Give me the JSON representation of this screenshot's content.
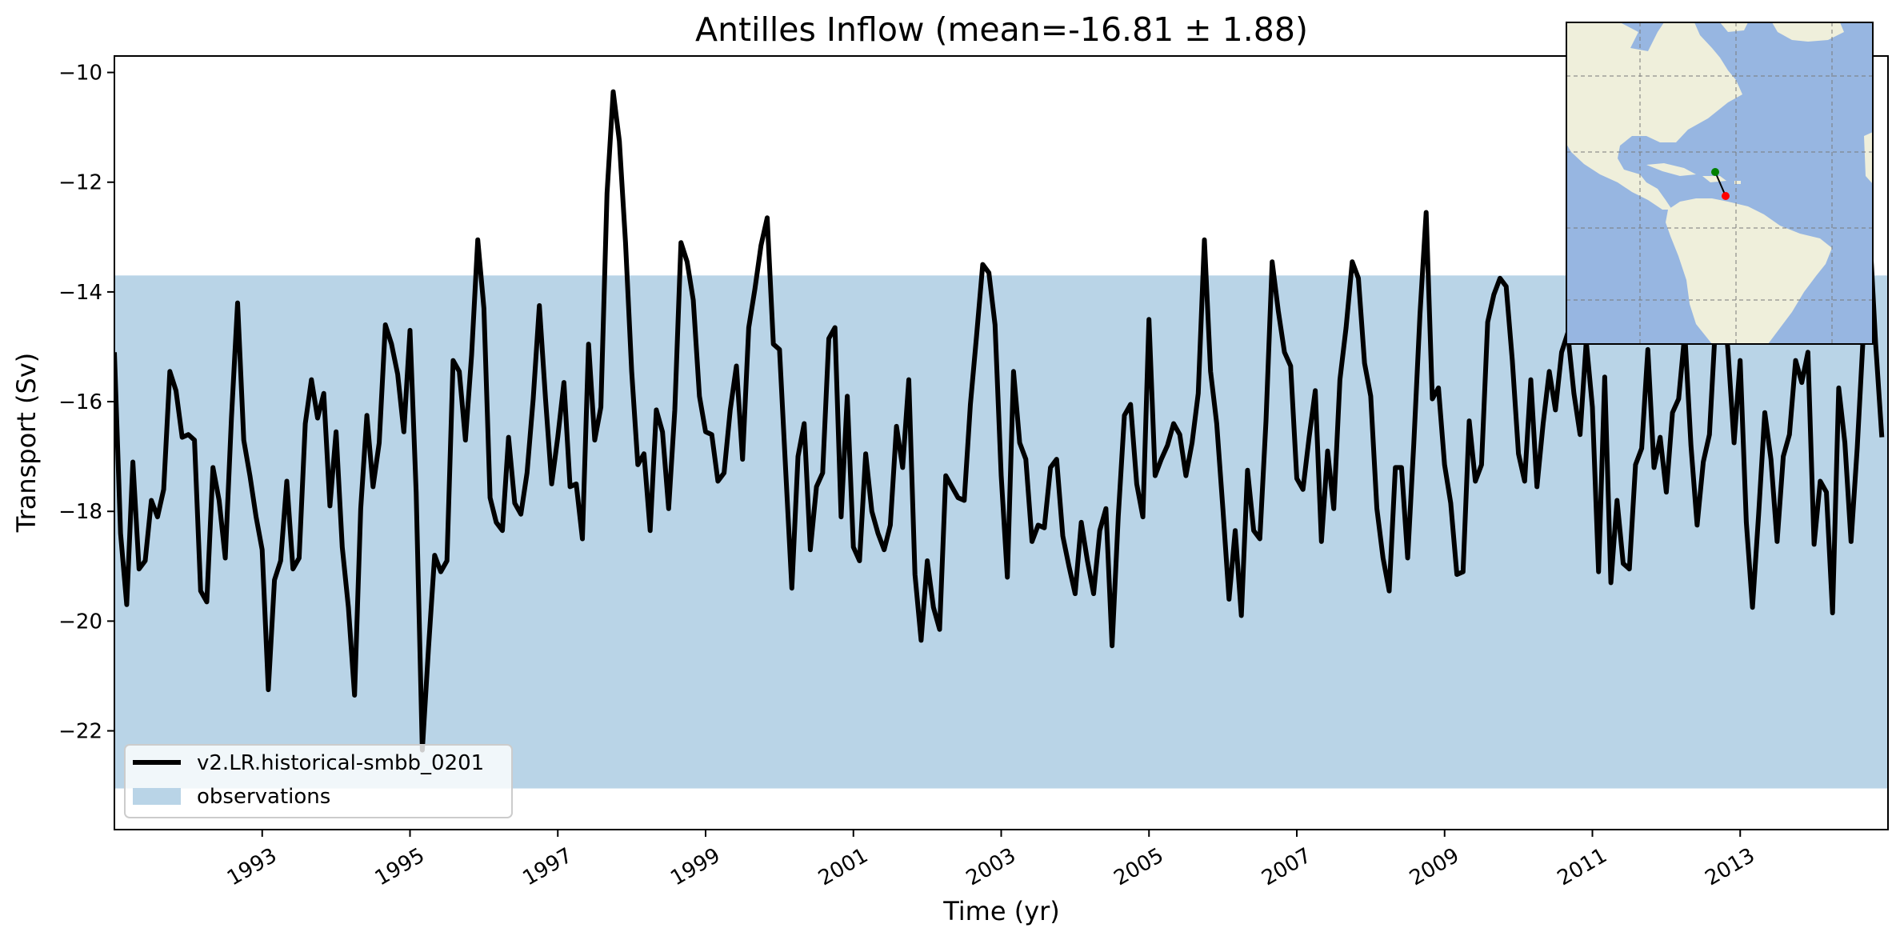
{
  "chart_data": {
    "type": "line",
    "title": "Antilles Inflow (mean=-16.81 ± 1.88)",
    "xlabel": "Time (yr)",
    "ylabel": "Transport (Sv)",
    "x_tick_labels": [
      "1993",
      "1995",
      "1997",
      "1999",
      "2001",
      "2003",
      "2005",
      "2007",
      "2009",
      "2011",
      "2013"
    ],
    "y_tick_labels": [
      "−22",
      "−20",
      "−18",
      "−16",
      "−14",
      "−12",
      "−10"
    ],
    "xlim": [
      1991.0,
      2015.0
    ],
    "ylim": [
      -23.8,
      -9.7
    ],
    "grid": false,
    "legend_position": "lower-left",
    "colors": {
      "series": "#000000",
      "band": "#b9d4e7",
      "ocean": "#97b6e1",
      "land": "#efefdb"
    },
    "series": [
      {
        "name": "v2.LR.historical-smbb_0201",
        "x_start": 1991.0,
        "x_step": 0.0833333,
        "values": [
          -15.1,
          -18.4,
          -19.7,
          -17.1,
          -19.05,
          -18.9,
          -17.8,
          -18.1,
          -17.6,
          -15.45,
          -15.8,
          -16.65,
          -16.6,
          -16.7,
          -19.45,
          -19.65,
          -17.2,
          -17.8,
          -18.85,
          -16.3,
          -14.2,
          -16.7,
          -17.35,
          -18.1,
          -18.7,
          -21.25,
          -19.25,
          -18.9,
          -17.45,
          -19.05,
          -18.85,
          -16.4,
          -15.6,
          -16.3,
          -15.85,
          -17.9,
          -16.55,
          -18.65,
          -19.75,
          -21.35,
          -17.95,
          -16.25,
          -17.55,
          -16.75,
          -14.6,
          -14.95,
          -15.5,
          -16.55,
          -14.7,
          -17.65,
          -22.35,
          -20.5,
          -18.8,
          -19.1,
          -18.9,
          -15.25,
          -15.45,
          -16.7,
          -15.15,
          -13.05,
          -14.3,
          -17.75,
          -18.2,
          -18.35,
          -16.65,
          -17.85,
          -18.05,
          -17.3,
          -15.95,
          -14.25,
          -15.95,
          -17.5,
          -16.65,
          -15.65,
          -17.55,
          -17.5,
          -18.5,
          -14.95,
          -16.7,
          -16.1,
          -12.2,
          -10.35,
          -11.25,
          -13.1,
          -15.45,
          -17.15,
          -16.95,
          -18.35,
          -16.15,
          -16.55,
          -17.95,
          -16.15,
          -13.1,
          -13.45,
          -14.15,
          -15.9,
          -16.55,
          -16.6,
          -17.45,
          -17.3,
          -16.15,
          -15.35,
          -17.05,
          -14.65,
          -13.95,
          -13.15,
          -12.65,
          -14.95,
          -15.05,
          -17.25,
          -19.4,
          -17.0,
          -16.4,
          -18.7,
          -17.55,
          -17.3,
          -14.85,
          -14.65,
          -18.1,
          -15.9,
          -18.65,
          -18.9,
          -16.95,
          -18.0,
          -18.4,
          -18.7,
          -18.25,
          -16.45,
          -17.2,
          -15.6,
          -19.15,
          -20.35,
          -18.9,
          -19.75,
          -20.15,
          -17.35,
          -17.55,
          -17.75,
          -17.8,
          -16.05,
          -14.8,
          -13.5,
          -13.65,
          -14.6,
          -17.35,
          -19.2,
          -15.45,
          -16.75,
          -17.05,
          -18.55,
          -18.25,
          -18.3,
          -17.2,
          -17.05,
          -18.45,
          -19.0,
          -19.5,
          -18.2,
          -18.9,
          -19.5,
          -18.35,
          -17.95,
          -20.45,
          -18.1,
          -16.25,
          -16.05,
          -17.5,
          -18.1,
          -14.5,
          -17.35,
          -17.05,
          -16.8,
          -16.4,
          -16.6,
          -17.35,
          -16.75,
          -15.85,
          -13.05,
          -15.45,
          -16.4,
          -17.95,
          -19.6,
          -18.35,
          -19.9,
          -17.25,
          -18.35,
          -18.5,
          -16.35,
          -13.45,
          -14.35,
          -15.1,
          -15.35,
          -17.4,
          -17.6,
          -16.65,
          -15.8,
          -18.55,
          -16.9,
          -17.95,
          -15.6,
          -14.65,
          -13.45,
          -13.75,
          -15.3,
          -15.9,
          -17.95,
          -18.85,
          -19.45,
          -17.2,
          -17.2,
          -18.85,
          -16.75,
          -14.4,
          -12.55,
          -15.95,
          -15.75,
          -17.15,
          -17.85,
          -19.15,
          -19.1,
          -16.35,
          -17.45,
          -17.15,
          -14.55,
          -14.05,
          -13.75,
          -13.9,
          -15.25,
          -16.95,
          -17.45,
          -15.6,
          -17.55,
          -16.4,
          -15.45,
          -16.15,
          -15.1,
          -14.75,
          -15.85,
          -16.6,
          -14.9,
          -16.1,
          -19.1,
          -15.55,
          -19.3,
          -17.8,
          -18.95,
          -19.05,
          -17.15,
          -16.85,
          -15.05,
          -17.2,
          -16.65,
          -17.65,
          -16.2,
          -15.95,
          -14.75,
          -16.8,
          -18.25,
          -17.1,
          -16.6,
          -14.55,
          -13.85,
          -15.05,
          -16.75,
          -15.25,
          -18.2,
          -19.75,
          -18.05,
          -16.2,
          -17.05,
          -18.55,
          -17.0,
          -16.6,
          -15.25,
          -15.65,
          -15.1,
          -18.6,
          -17.45,
          -17.65,
          -19.85,
          -15.75,
          -16.75,
          -18.55,
          -16.85,
          -14.75,
          -12.85,
          -14.95,
          -16.65
        ]
      }
    ],
    "bands": [
      {
        "name": "observations",
        "y_min": -23.05,
        "y_max": -13.7
      }
    ],
    "inset_map": {
      "description_points": [
        {
          "color": "#008000"
        },
        {
          "color": "#ff0000"
        }
      ]
    }
  }
}
